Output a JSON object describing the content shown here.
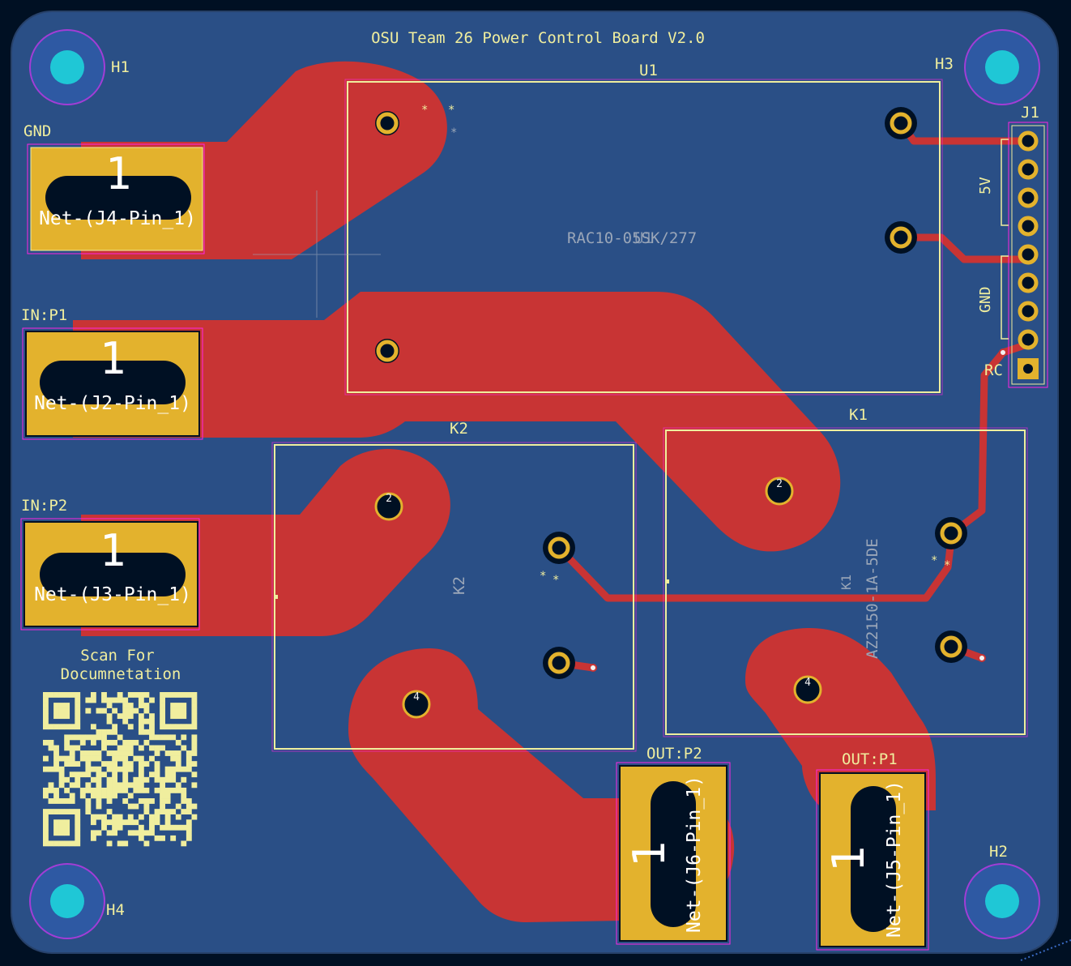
{
  "board": {
    "title": "OSU Team 26  Power Control Board V2.0",
    "qr_caption_line1": "Scan For",
    "qr_caption_line2": "Documnetation"
  },
  "colors": {
    "background": "#001023",
    "board": "#2a4f86",
    "copper": "#c83434",
    "pad": "#e3b22d",
    "silk": "#f0ee9e",
    "courtyard": "#ff26e2",
    "via": "#1fc7d6",
    "grey_text": "#9aa6b8"
  },
  "mounting_holes": [
    {
      "ref": "H1"
    },
    {
      "ref": "H2"
    },
    {
      "ref": "H3"
    },
    {
      "ref": "H4"
    }
  ],
  "terminals": [
    {
      "label": "GND",
      "pad_number": "1",
      "net": "Net-(J4-Pin_1)"
    },
    {
      "label": "IN:P1",
      "pad_number": "1",
      "net": "Net-(J2-Pin_1)"
    },
    {
      "label": "IN:P2",
      "pad_number": "1",
      "net": "Net-(J3-Pin_1)"
    },
    {
      "label": "OUT:P2",
      "pad_number": "1",
      "net": "Net-(J6-Pin_1)"
    },
    {
      "label": "OUT:P1",
      "pad_number": "1",
      "net": "Net-(J5-Pin_1)"
    }
  ],
  "module_u1": {
    "ref": "U1",
    "value_a": "RAC10-05SK/277",
    "value_b": "U1"
  },
  "relay_k1": {
    "ref": "K1",
    "value": "AZ2150-1A-5DE",
    "fab_ref": "K1",
    "pin2": "2",
    "pin4": "4"
  },
  "relay_k2": {
    "ref": "K2",
    "fab_ref": "K2",
    "pin2": "2",
    "pin4": "4"
  },
  "header_j1": {
    "ref": "J1",
    "label_5v": "5V",
    "label_gnd": "GND",
    "label_rc": "RC"
  }
}
